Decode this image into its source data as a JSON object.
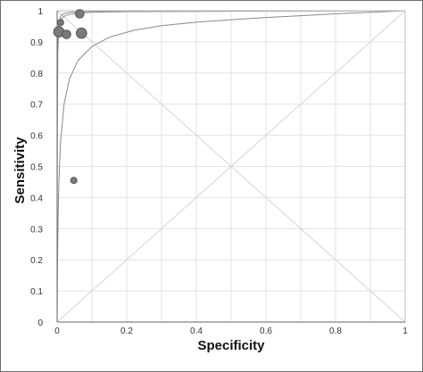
{
  "chart_data": {
    "type": "scatter",
    "title": "",
    "xlabel": "Specificity",
    "ylabel": "Sensitivity",
    "xlim": [
      0,
      1
    ],
    "ylim": [
      0,
      1
    ],
    "x_ticks": [
      "0",
      "0.2",
      "0.4",
      "0.6",
      "0.8",
      "1"
    ],
    "x_tick_values": [
      0,
      0.2,
      0.4,
      0.6,
      0.8,
      1
    ],
    "y_ticks": [
      "0",
      "0.1",
      "0.2",
      "0.3",
      "0.4",
      "0.5",
      "0.6",
      "0.7",
      "0.8",
      "0.9",
      "1"
    ],
    "y_tick_values": [
      0,
      0.1,
      0.2,
      0.3,
      0.4,
      0.5,
      0.6,
      0.7,
      0.8,
      0.9,
      1
    ],
    "grid": true,
    "reference_diagonals": true,
    "points": [
      {
        "x": 0.065,
        "y": 0.99,
        "size": "medium"
      },
      {
        "x": 0.01,
        "y": 0.962,
        "size": "small"
      },
      {
        "x": 0.005,
        "y": 0.932,
        "size": "large"
      },
      {
        "x": 0.027,
        "y": 0.924,
        "size": "medium"
      },
      {
        "x": 0.07,
        "y": 0.928,
        "size": "large"
      },
      {
        "x": 0.048,
        "y": 0.455,
        "size": "small"
      }
    ],
    "curves": [
      {
        "name": "sroc",
        "points": [
          [
            0,
            0
          ],
          [
            0.0005,
            0.55
          ],
          [
            0.001,
            0.72
          ],
          [
            0.002,
            0.86
          ],
          [
            0.004,
            0.93
          ],
          [
            0.007,
            0.958
          ],
          [
            0.012,
            0.973
          ],
          [
            0.02,
            0.982
          ],
          [
            0.035,
            0.988
          ],
          [
            0.06,
            0.992
          ],
          [
            0.1,
            0.995
          ],
          [
            0.2,
            0.997
          ],
          [
            0.4,
            0.998
          ],
          [
            0.7,
            0.999
          ],
          [
            1,
            1
          ]
        ]
      },
      {
        "name": "upper-bound",
        "points": [
          [
            0,
            0.8
          ],
          [
            0.002,
            0.93
          ],
          [
            0.005,
            0.965
          ],
          [
            0.01,
            0.982
          ],
          [
            0.02,
            0.991
          ],
          [
            0.04,
            0.995
          ],
          [
            0.08,
            0.998
          ],
          [
            0.2,
            0.999
          ],
          [
            0.5,
            0.9995
          ],
          [
            1,
            1
          ]
        ]
      },
      {
        "name": "lower-bound",
        "points": [
          [
            0,
            0
          ],
          [
            0.001,
            0.18
          ],
          [
            0.0025,
            0.32
          ],
          [
            0.005,
            0.45
          ],
          [
            0.01,
            0.58
          ],
          [
            0.02,
            0.7
          ],
          [
            0.035,
            0.78
          ],
          [
            0.06,
            0.84
          ],
          [
            0.1,
            0.885
          ],
          [
            0.15,
            0.915
          ],
          [
            0.22,
            0.937
          ],
          [
            0.3,
            0.952
          ],
          [
            0.4,
            0.963
          ],
          [
            0.5,
            0.971
          ],
          [
            0.6,
            0.978
          ],
          [
            0.7,
            0.984
          ],
          [
            0.8,
            0.99
          ],
          [
            0.9,
            0.995
          ],
          [
            1,
            1
          ]
        ]
      }
    ],
    "colors": {
      "point_fill": "#7a7a7a",
      "point_stroke": "#555555",
      "curve": "#8a8a8a",
      "grid": "#e3e3e3",
      "axis": "#666666"
    }
  }
}
